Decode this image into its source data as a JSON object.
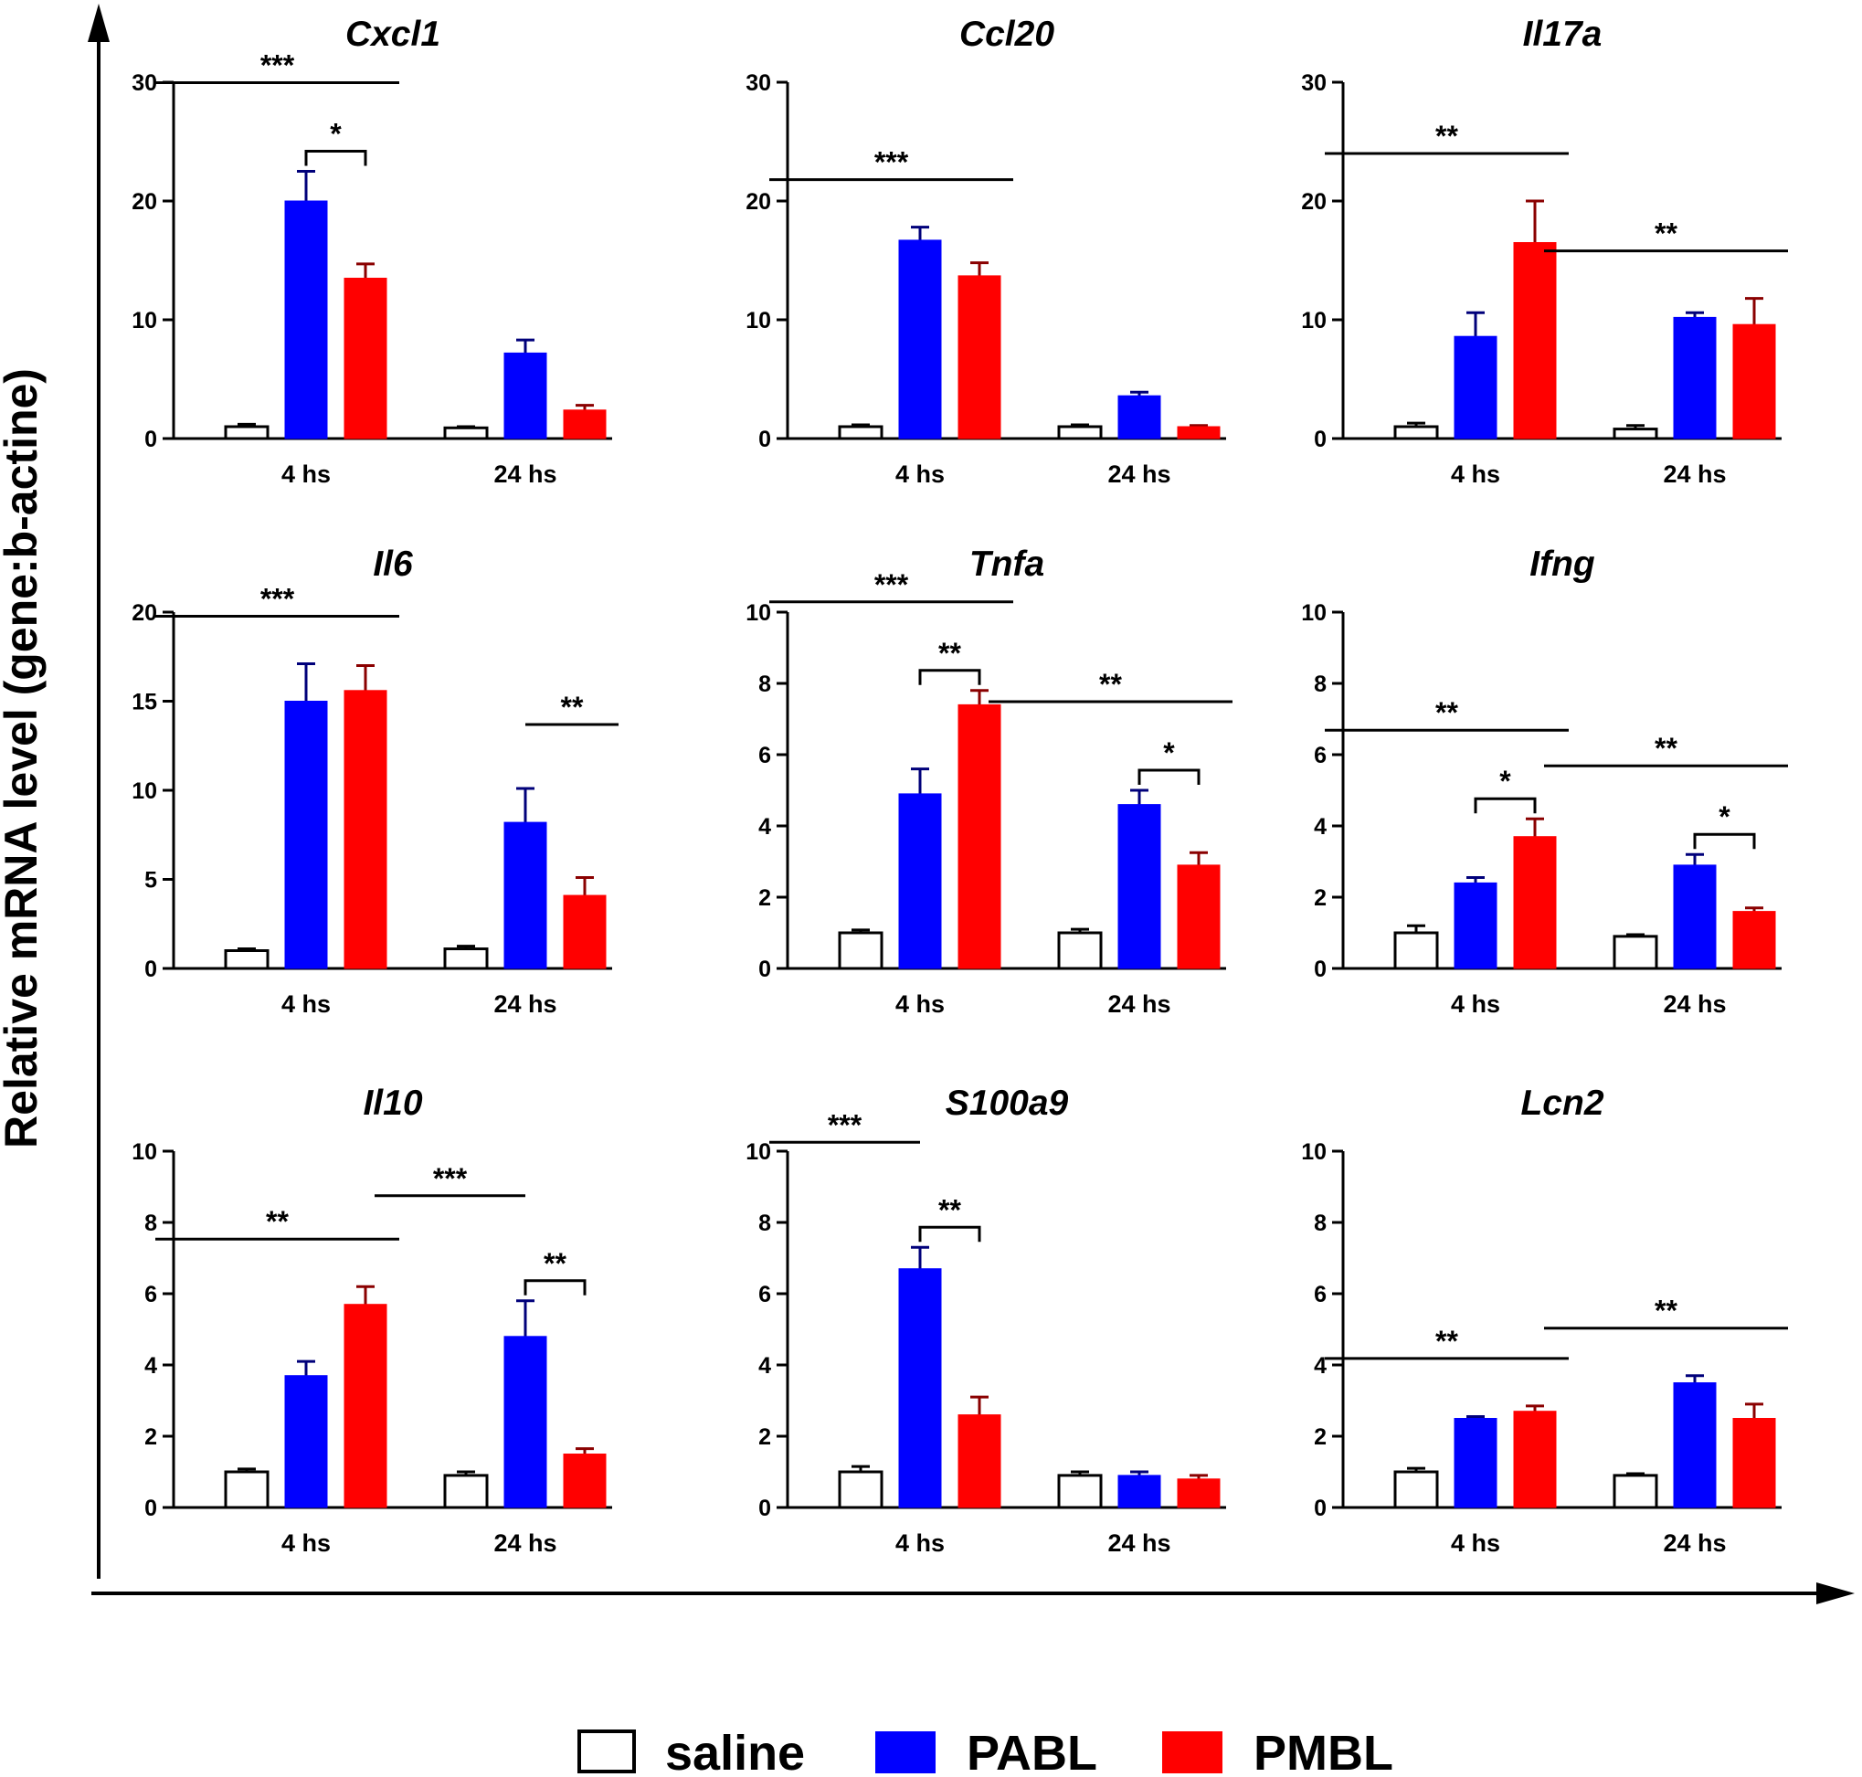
{
  "figure": {
    "y_axis_label": "Relative mRNA level (gene:b-actine)"
  },
  "legend": [
    {
      "label": "saline",
      "color": "#ffffff"
    },
    {
      "label": "PABL",
      "color": "#0000ff"
    },
    {
      "label": "PMBL",
      "color": "#ff0000"
    }
  ],
  "chart_data": [
    {
      "type": "bar",
      "title": "Cxcl1",
      "categories": [
        "4 hs",
        "24 hs"
      ],
      "ylim": [
        0,
        30
      ],
      "yticks": [
        0,
        10,
        20,
        30
      ],
      "series": [
        {
          "name": "saline",
          "values": [
            1.0,
            0.9
          ],
          "errors": [
            0.2,
            0.1
          ]
        },
        {
          "name": "PABL",
          "values": [
            20.0,
            7.2
          ],
          "errors": [
            2.5,
            1.1
          ]
        },
        {
          "name": "PMBL",
          "values": [
            13.5,
            2.4
          ],
          "errors": [
            1.2,
            0.4
          ]
        }
      ],
      "annotations": [
        {
          "text": "***",
          "type": "line",
          "group": 0,
          "from": 0,
          "to": 2
        },
        {
          "text": "*",
          "type": "bracket",
          "group": 0,
          "from": 1,
          "to": 2
        }
      ]
    },
    {
      "type": "bar",
      "title": "Ccl20",
      "categories": [
        "4 hs",
        "24 hs"
      ],
      "ylim": [
        0,
        30
      ],
      "yticks": [
        0,
        10,
        20,
        30
      ],
      "series": [
        {
          "name": "saline",
          "values": [
            1.0,
            1.0
          ],
          "errors": [
            0.15,
            0.15
          ]
        },
        {
          "name": "PABL",
          "values": [
            16.7,
            3.6
          ],
          "errors": [
            1.1,
            0.3
          ]
        },
        {
          "name": "PMBL",
          "values": [
            13.7,
            1.0
          ],
          "errors": [
            1.1,
            0.1
          ]
        }
      ],
      "annotations": [
        {
          "text": "***",
          "type": "line",
          "group": 0,
          "from": 0,
          "to": 2
        }
      ]
    },
    {
      "type": "bar",
      "title": "Il17a",
      "categories": [
        "4 hs",
        "24 hs"
      ],
      "ylim": [
        0,
        30
      ],
      "yticks": [
        0,
        10,
        20,
        30
      ],
      "series": [
        {
          "name": "saline",
          "values": [
            1.0,
            0.8
          ],
          "errors": [
            0.3,
            0.3
          ]
        },
        {
          "name": "PABL",
          "values": [
            8.6,
            10.2
          ],
          "errors": [
            2.0,
            0.4
          ]
        },
        {
          "name": "PMBL",
          "values": [
            16.5,
            9.6
          ],
          "errors": [
            3.5,
            2.2
          ]
        }
      ],
      "annotations": [
        {
          "text": "**",
          "type": "line",
          "group": 0,
          "from": 0,
          "to": 2
        },
        {
          "text": "**",
          "type": "line",
          "group": 1,
          "from": 0,
          "to": 2
        }
      ]
    },
    {
      "type": "bar",
      "title": "Il6",
      "categories": [
        "4 hs",
        "24 hs"
      ],
      "ylim": [
        0,
        20
      ],
      "yticks": [
        0,
        5,
        10,
        15,
        20
      ],
      "series": [
        {
          "name": "saline",
          "values": [
            1.0,
            1.1
          ],
          "errors": [
            0.1,
            0.15
          ]
        },
        {
          "name": "PABL",
          "values": [
            15.0,
            8.2
          ],
          "errors": [
            2.1,
            1.9
          ]
        },
        {
          "name": "PMBL",
          "values": [
            15.6,
            4.1
          ],
          "errors": [
            1.4,
            1.0
          ]
        }
      ],
      "annotations": [
        {
          "text": "***",
          "type": "line",
          "group": 0,
          "from": 0,
          "to": 2
        },
        {
          "text": "**",
          "type": "line",
          "group": 1,
          "from": 1,
          "to": 2
        }
      ]
    },
    {
      "type": "bar",
      "title": "Tnfa",
      "categories": [
        "4 hs",
        "24 hs"
      ],
      "ylim": [
        0,
        10
      ],
      "yticks": [
        0,
        2,
        4,
        6,
        8,
        10
      ],
      "series": [
        {
          "name": "saline",
          "values": [
            1.0,
            1.0
          ],
          "errors": [
            0.08,
            0.1
          ]
        },
        {
          "name": "PABL",
          "values": [
            4.9,
            4.6
          ],
          "errors": [
            0.7,
            0.4
          ]
        },
        {
          "name": "PMBL",
          "values": [
            7.4,
            2.9
          ],
          "errors": [
            0.4,
            0.35
          ]
        }
      ],
      "annotations": [
        {
          "text": "***",
          "type": "line",
          "group": 0,
          "from": 0,
          "to": 2
        },
        {
          "text": "**",
          "type": "bracket",
          "group": 0,
          "from": 1,
          "to": 2
        },
        {
          "text": "**",
          "type": "line",
          "group": 1,
          "from": 0,
          "to": 2
        },
        {
          "text": "*",
          "type": "bracket",
          "group": 1,
          "from": 1,
          "to": 2
        }
      ]
    },
    {
      "type": "bar",
      "title": "Ifng",
      "categories": [
        "4 hs",
        "24 hs"
      ],
      "ylim": [
        0,
        10
      ],
      "yticks": [
        0,
        2,
        4,
        6,
        8,
        10
      ],
      "series": [
        {
          "name": "saline",
          "values": [
            1.0,
            0.9
          ],
          "errors": [
            0.2,
            0.05
          ]
        },
        {
          "name": "PABL",
          "values": [
            2.4,
            2.9
          ],
          "errors": [
            0.15,
            0.3
          ]
        },
        {
          "name": "PMBL",
          "values": [
            3.7,
            1.6
          ],
          "errors": [
            0.5,
            0.1
          ]
        }
      ],
      "annotations": [
        {
          "text": "**",
          "type": "line",
          "group": 0,
          "from": 0,
          "to": 2
        },
        {
          "text": "*",
          "type": "bracket",
          "group": 0,
          "from": 1,
          "to": 2
        },
        {
          "text": "**",
          "type": "line",
          "group": 1,
          "from": 0,
          "to": 2
        },
        {
          "text": "*",
          "type": "bracket",
          "group": 1,
          "from": 1,
          "to": 2
        }
      ]
    },
    {
      "type": "bar",
      "title": "Il10",
      "categories": [
        "4 hs",
        "24 hs"
      ],
      "ylim": [
        0,
        10
      ],
      "yticks": [
        0,
        2,
        4,
        6,
        8,
        10
      ],
      "series": [
        {
          "name": "saline",
          "values": [
            1.0,
            0.9
          ],
          "errors": [
            0.08,
            0.1
          ]
        },
        {
          "name": "PABL",
          "values": [
            3.7,
            4.8
          ],
          "errors": [
            0.4,
            1.0
          ]
        },
        {
          "name": "PMBL",
          "values": [
            5.7,
            1.5
          ],
          "errors": [
            0.5,
            0.15
          ]
        }
      ],
      "annotations": [
        {
          "text": "**",
          "type": "line",
          "group": 0,
          "from": 0,
          "to": 2
        },
        {
          "text": "***",
          "type": "line",
          "group": 1,
          "from": 0,
          "to": 1
        },
        {
          "text": "**",
          "type": "bracket",
          "group": 1,
          "from": 1,
          "to": 2
        }
      ]
    },
    {
      "type": "bar",
      "title": "S100a9",
      "categories": [
        "4 hs",
        "24 hs"
      ],
      "ylim": [
        0,
        10
      ],
      "yticks": [
        0,
        2,
        4,
        6,
        8,
        10
      ],
      "series": [
        {
          "name": "saline",
          "values": [
            1.0,
            0.9
          ],
          "errors": [
            0.15,
            0.1
          ]
        },
        {
          "name": "PABL",
          "values": [
            6.7,
            0.9
          ],
          "errors": [
            0.6,
            0.1
          ]
        },
        {
          "name": "PMBL",
          "values": [
            2.6,
            0.8
          ],
          "errors": [
            0.5,
            0.1
          ]
        }
      ],
      "annotations": [
        {
          "text": "***",
          "type": "line",
          "group": 0,
          "from": 0,
          "to": 1
        },
        {
          "text": "**",
          "type": "bracket",
          "group": 0,
          "from": 1,
          "to": 2
        }
      ]
    },
    {
      "type": "bar",
      "title": "Lcn2",
      "categories": [
        "4 hs",
        "24 hs"
      ],
      "ylim": [
        0,
        10
      ],
      "yticks": [
        0,
        2,
        4,
        6,
        8,
        10
      ],
      "series": [
        {
          "name": "saline",
          "values": [
            1.0,
            0.9
          ],
          "errors": [
            0.1,
            0.05
          ]
        },
        {
          "name": "PABL",
          "values": [
            2.5,
            3.5
          ],
          "errors": [
            0.05,
            0.2
          ]
        },
        {
          "name": "PMBL",
          "values": [
            2.7,
            2.5
          ],
          "errors": [
            0.15,
            0.4
          ]
        }
      ],
      "annotations": [
        {
          "text": "**",
          "type": "line",
          "group": 0,
          "from": 0,
          "to": 2
        },
        {
          "text": "**",
          "type": "line",
          "group": 1,
          "from": 0,
          "to": 2
        }
      ]
    }
  ]
}
